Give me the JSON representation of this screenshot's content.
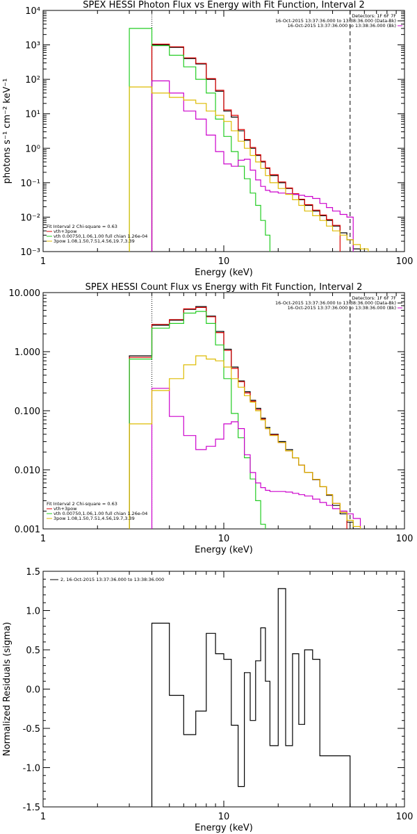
{
  "chart_data": [
    {
      "type": "line",
      "step": true,
      "title": "SPEX HESSI Photon Flux vs Energy with Fit Function, Interval 2",
      "xlabel": "Energy (keV)",
      "ylabel": "photons s⁻¹ cm⁻² keV⁻¹",
      "xscale": "log",
      "yscale": "log",
      "xlim": [
        1,
        100
      ],
      "ylim": [
        0.001,
        10000
      ],
      "xticks": [
        "1",
        "10",
        "100"
      ],
      "yticks": [
        "10⁻³",
        "10⁻²",
        "10⁻¹",
        "10⁰",
        "10¹",
        "10²",
        "10³",
        "10⁴"
      ],
      "ytick_values": [
        0.001,
        0.01,
        0.1,
        1,
        10,
        100,
        1000,
        10000
      ],
      "vlines": [
        {
          "x": 4.0,
          "style": "dotted"
        },
        {
          "x": 50.0,
          "style": "dashed"
        }
      ],
      "legend_topright": [
        "Detectors: 1F 6F 7F",
        "16-Oct-2015 13:37:36.000 to 13:38:36.000 (Data-Bk)",
        "16-Oct-2015 13:37:36.000 to 13:38:36.000 (Bk)"
      ],
      "legend_bottomleft": [
        "Fit Interval 2   Chi-square = 0.63",
        "vth+3pow",
        "vth 0.00750,1.06,1.00  full chian 1.26e-04",
        "3pow 1.08,1.50,7.51,4.56,19.7,3.39"
      ],
      "x_edges": [
        3.0,
        4.0,
        5.0,
        6.0,
        7.0,
        8.0,
        9.0,
        10.0,
        11.0,
        12.0,
        13.0,
        14.0,
        15.0,
        16.0,
        17.0,
        18.0,
        20.0,
        22.0,
        24.0,
        26.0,
        28.0,
        31.0,
        34.0,
        37.0,
        40.0,
        44.0,
        48.0,
        52.0,
        57.0,
        63.0,
        70.0,
        78.0,
        87.0,
        97.0
      ],
      "series": [
        {
          "name": "Data-Bk",
          "color": "#000000",
          "start": 1,
          "values": [
            1000,
            850,
            400,
            280,
            100,
            45,
            12,
            8,
            3.2,
            1.7,
            1.0,
            0.62,
            0.4,
            0.26,
            0.16,
            0.1,
            0.068,
            0.046,
            0.032,
            0.022,
            0.015,
            0.011,
            0.008,
            0.0055,
            0.0035,
            0.0022,
            0.0012
          ]
        },
        {
          "name": "vth+3pow",
          "color": "#dd0000",
          "start": 1,
          "values": [
            1050,
            880,
            420,
            290,
            105,
            48,
            13,
            9,
            3.5,
            1.8,
            1.05,
            0.65,
            0.42,
            0.27,
            0.17,
            0.105,
            0.07,
            0.048,
            0.033,
            0.023,
            0.016,
            0.0115,
            0.0085,
            0.0058
          ]
        },
        {
          "name": "vth",
          "color": "#22cc22",
          "start": 0,
          "values": [
            3000,
            950,
            500,
            230,
            100,
            40,
            7,
            2.2,
            0.8,
            0.3,
            0.13,
            0.05,
            0.022,
            0.008,
            0.003,
            0.0005
          ]
        },
        {
          "name": "Bk",
          "color": "#cc00cc",
          "start": 1,
          "values": [
            90,
            40,
            12,
            7,
            2.4,
            0.8,
            0.35,
            0.3,
            0.45,
            0.48,
            0.23,
            0.12,
            0.078,
            0.06,
            0.054,
            0.05,
            0.048,
            0.046,
            0.043,
            0.04,
            0.035,
            0.025,
            0.019,
            0.015,
            0.012,
            0.01
          ]
        },
        {
          "name": "3pow",
          "color": "#ddbb00",
          "start": 0,
          "values": [
            60,
            40,
            30,
            25,
            20,
            12,
            9,
            6,
            3.2,
            1.6,
            1.0,
            0.62,
            0.4,
            0.26,
            0.16,
            0.1,
            0.068,
            0.046,
            0.032,
            0.022,
            0.015,
            0.011,
            0.008,
            0.0055,
            0.004,
            0.003,
            0.0022,
            0.0016,
            0.0012,
            0.0009,
            0.0007,
            0.0005
          ]
        }
      ]
    },
    {
      "type": "line",
      "step": true,
      "title": "SPEX HESSI Count Flux vs Energy with Fit Function, Interval 2",
      "xlabel": "Energy (keV)",
      "ylabel": "",
      "xscale": "log",
      "yscale": "log",
      "xlim": [
        1,
        100
      ],
      "ylim": [
        0.001,
        10
      ],
      "xticks": [
        "1",
        "10",
        "100"
      ],
      "yticks": [
        "0.001",
        "0.010",
        "0.100",
        "1.000",
        "10.000"
      ],
      "ytick_values": [
        0.001,
        0.01,
        0.1,
        1,
        10
      ],
      "vlines": [
        {
          "x": 4.0,
          "style": "dotted"
        },
        {
          "x": 50.0,
          "style": "dashed"
        }
      ],
      "legend_topright": [
        "Detectors: 1F 6F 7F",
        "16-Oct-2015 13:37:36.000 to 13:38:36.000 (Data-Bk)",
        "16-Oct-2015 13:37:36.000 to 13:38:36.000 (Bk)"
      ],
      "legend_bottomleft": [
        "Fit Interval 2   Chi-square = 0.63",
        "vth+3pow",
        "vth 0.00750,1.06,1.00  full chian 1.26e-04",
        "3pow 1.08,1.50,7.51,4.56,19.7,3.39"
      ],
      "x_edges": [
        3.0,
        4.0,
        5.0,
        6.0,
        7.0,
        8.0,
        9.0,
        10.0,
        11.0,
        12.0,
        13.0,
        14.0,
        15.0,
        16.0,
        17.0,
        18.0,
        20.0,
        22.0,
        24.0,
        26.0,
        28.0,
        31.0,
        34.0,
        37.0,
        40.0,
        44.0,
        48.0,
        52.0,
        57.0,
        63.0,
        70.0,
        78.0,
        87.0,
        97.0
      ],
      "series": [
        {
          "name": "Data-Bk",
          "color": "#000000",
          "start": 0,
          "values": [
            0.85,
            2.8,
            3.4,
            5.2,
            5.8,
            4.0,
            2.2,
            1.1,
            0.55,
            0.32,
            0.21,
            0.15,
            0.11,
            0.075,
            0.052,
            0.04,
            0.03,
            0.022,
            0.016,
            0.012,
            0.009,
            0.0068,
            0.0052,
            0.0037,
            0.0025,
            0.0018,
            0.0013,
            0.001
          ]
        },
        {
          "name": "vth+3pow",
          "color": "#dd0000",
          "start": 0,
          "values": [
            0.8,
            2.9,
            3.5,
            5.3,
            5.6,
            3.9,
            2.1,
            1.05,
            0.52,
            0.31,
            0.2,
            0.145,
            0.105,
            0.072,
            0.05,
            0.039,
            0.029,
            0.021,
            0.016,
            0.012,
            0.009,
            0.0069,
            0.0052,
            0.0038,
            0.0027,
            0.0019
          ]
        },
        {
          "name": "vth",
          "color": "#22cc22",
          "start": 0,
          "values": [
            0.75,
            2.5,
            3.0,
            4.5,
            4.8,
            3.0,
            1.3,
            0.35,
            0.09,
            0.035,
            0.016,
            0.007,
            0.003,
            0.0012
          ]
        },
        {
          "name": "Bk",
          "color": "#cc00cc",
          "start": 1,
          "values": [
            0.24,
            0.08,
            0.038,
            0.022,
            0.025,
            0.033,
            0.06,
            0.065,
            0.05,
            0.018,
            0.009,
            0.006,
            0.005,
            0.0045,
            0.0043,
            0.0043,
            0.0042,
            0.004,
            0.0038,
            0.0036,
            0.0032,
            0.0028,
            0.0025,
            0.0022,
            0.002,
            0.0018,
            0.0015
          ]
        },
        {
          "name": "3pow",
          "color": "#ddbb00",
          "start": 0,
          "values": [
            0.06,
            0.22,
            0.35,
            0.6,
            0.85,
            0.75,
            0.7,
            0.55,
            0.35,
            0.25,
            0.18,
            0.14,
            0.1,
            0.07,
            0.05,
            0.038,
            0.029,
            0.021,
            0.016,
            0.012,
            0.009,
            0.0069,
            0.0052,
            0.0038,
            0.0027,
            0.0019,
            0.0014,
            0.0011
          ]
        }
      ]
    },
    {
      "type": "line",
      "step": true,
      "title": "",
      "xlabel": "Energy (keV)",
      "ylabel": "Normalized Residuals (sigma)",
      "xscale": "log",
      "yscale": "linear",
      "xlim": [
        1,
        100
      ],
      "ylim": [
        -1.5,
        1.5
      ],
      "xticks": [
        "1",
        "10",
        "100"
      ],
      "yticks": [
        "-1.5",
        "-1.0",
        "-0.5",
        "0.0",
        "0.5",
        "1.0",
        "1.5"
      ],
      "ytick_values": [
        -1.5,
        -1.0,
        -0.5,
        0.0,
        0.5,
        1.0,
        1.5
      ],
      "legend": [
        "2, 16-Oct-2015 13:37:36.000 to 13:38:36.000"
      ],
      "x_edges": [
        4.0,
        5.0,
        6.0,
        7.0,
        8.0,
        9.0,
        10.0,
        11.0,
        12.0,
        13.0,
        14.0,
        15.0,
        16.0,
        17.0,
        18.0,
        20.0,
        22.0,
        24.0,
        26.0,
        28.0,
        31.0,
        34.0,
        37.0,
        40.0,
        44.0,
        48.0,
        50.0
      ],
      "series": [
        {
          "name": "residuals",
          "color": "#000000",
          "start": 0,
          "values": [
            0.84,
            -0.08,
            -0.58,
            -0.28,
            0.71,
            0.45,
            0.38,
            -0.46,
            -1.24,
            0.21,
            -0.4,
            0.36,
            0.78,
            0.1,
            -0.72,
            1.28,
            -0.72,
            0.45,
            -0.45,
            0.5,
            0.38,
            -0.85,
            -0.85,
            -0.85,
            -0.85,
            -0.85
          ]
        }
      ]
    }
  ]
}
